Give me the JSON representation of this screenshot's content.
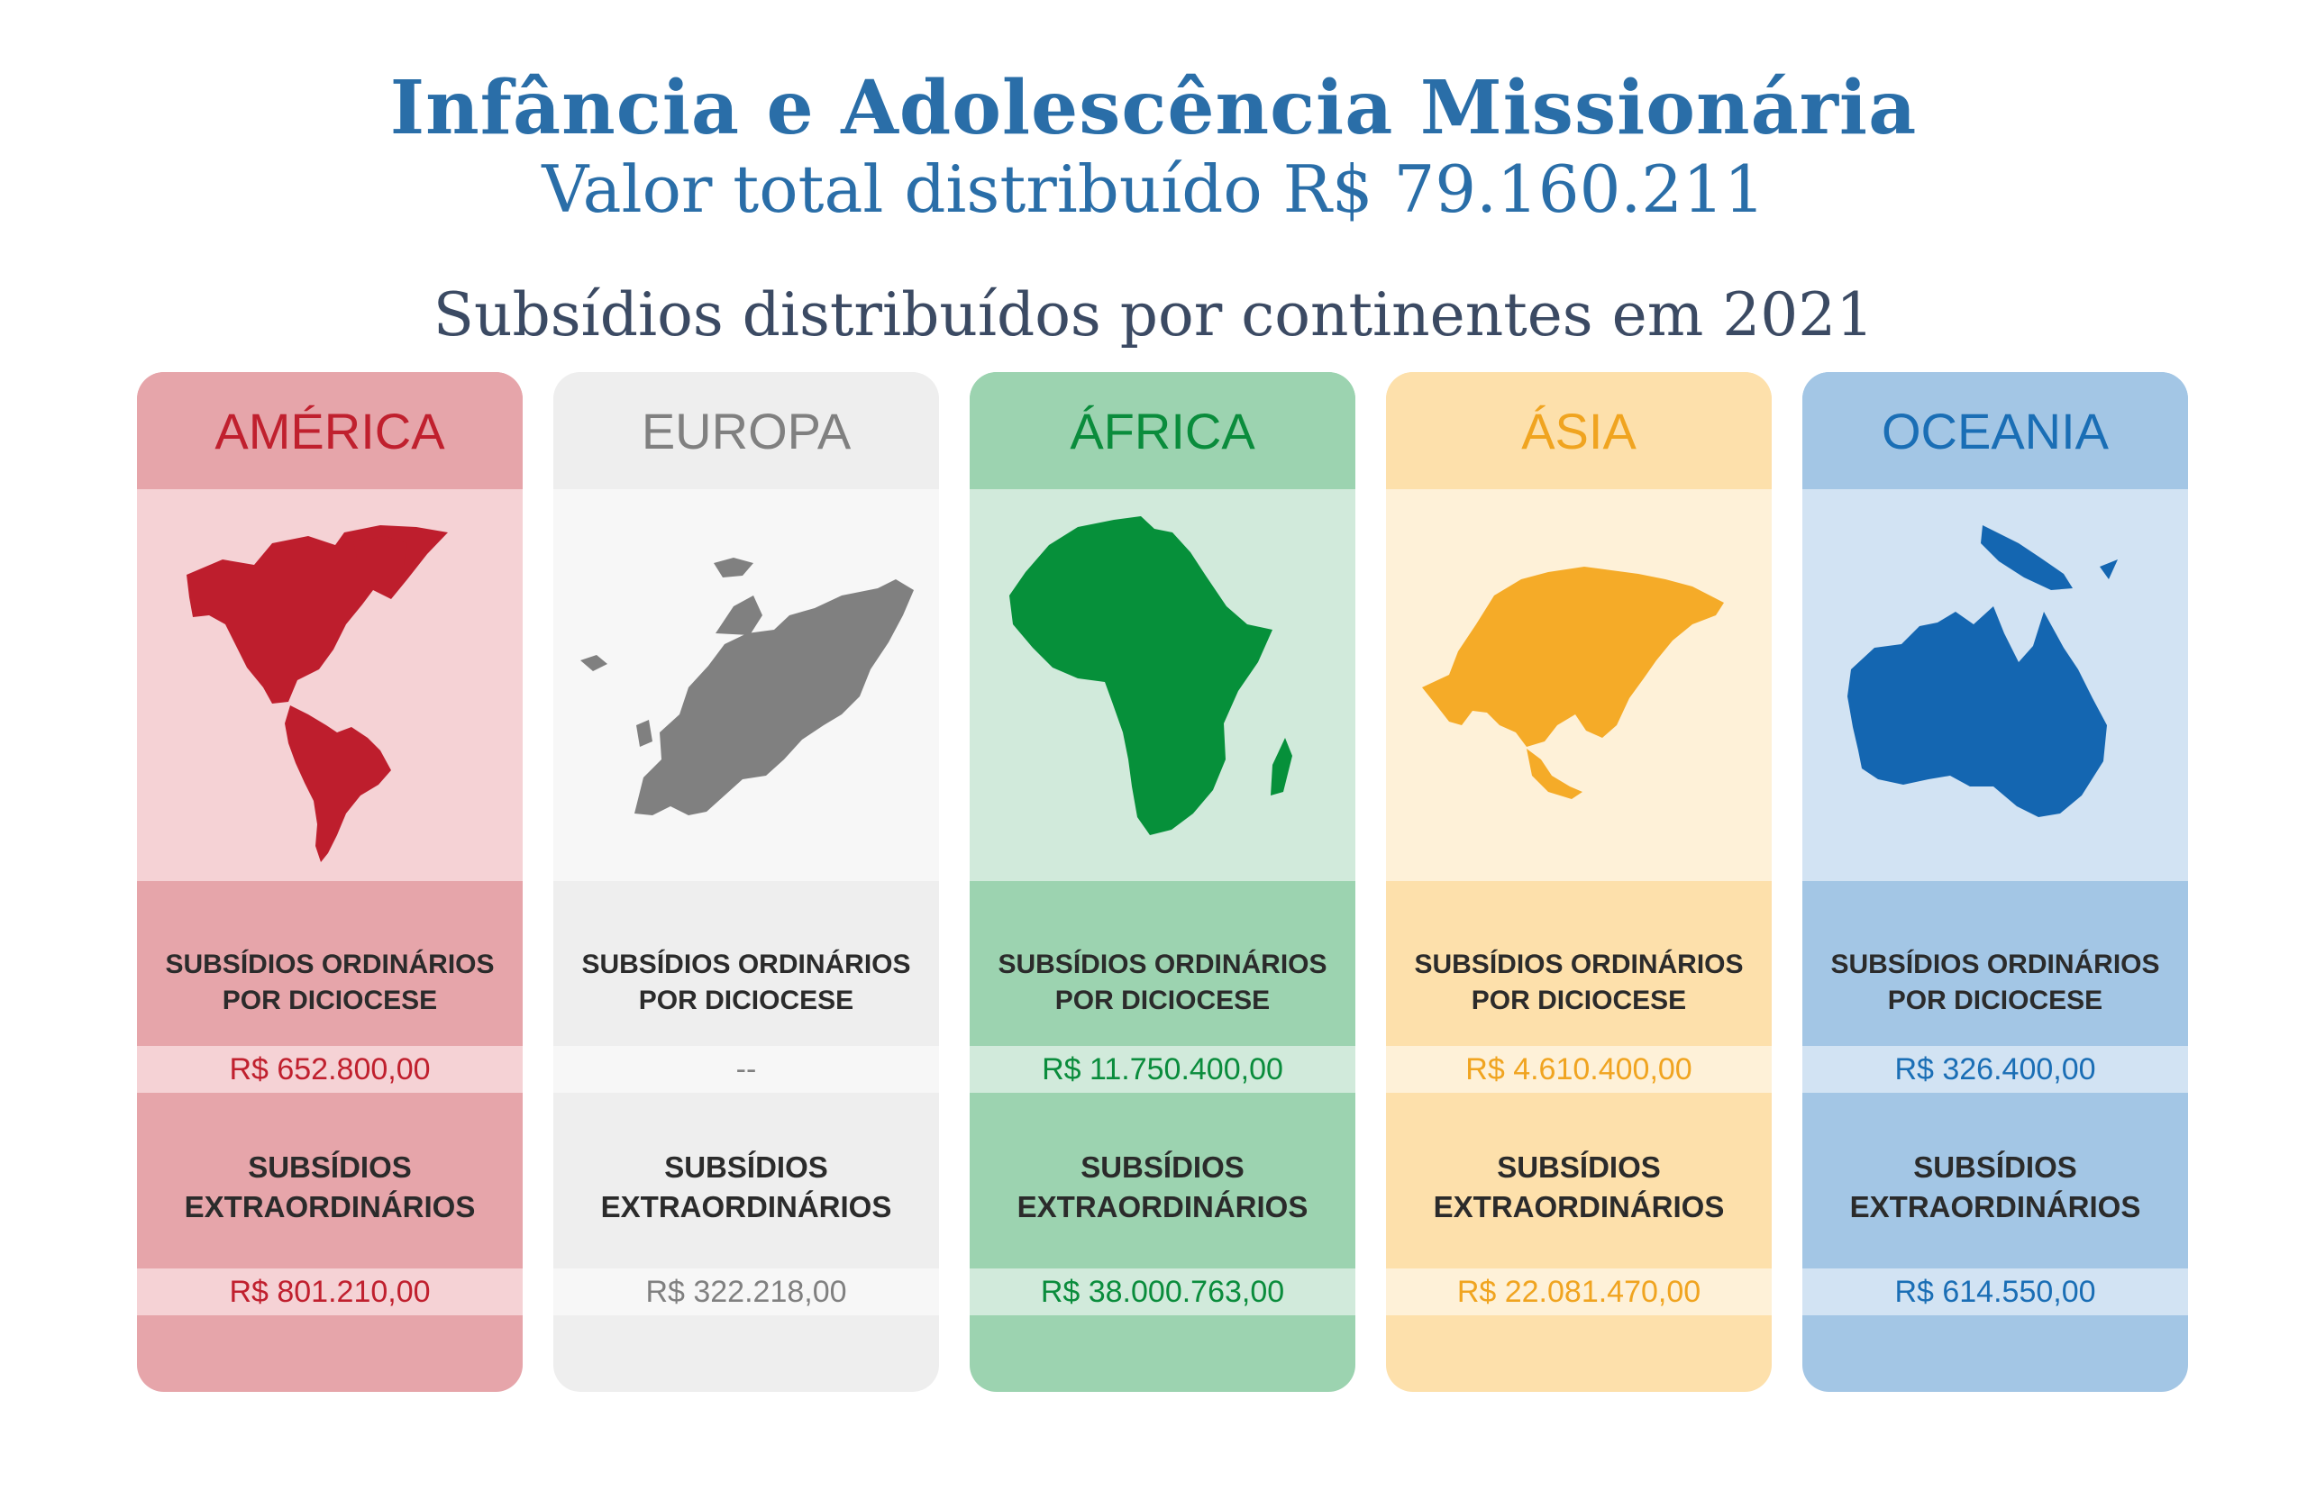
{
  "header": {
    "title": "Infância e Adolescência Missionária",
    "subtitle": "Valor total distribuído R$ 79.160.211",
    "section_title": "Subsídios distribuídos por continentes em 2021"
  },
  "labels": {
    "ordinarios": "SUBSÍDIOS ORDINÁRIOS\nPOR DICIOCESE",
    "extraordinarios": "SUBSÍDIOS\nEXTRAORDINÁRIOS"
  },
  "continents": [
    {
      "name": "AMÉRICA",
      "ordinarios": "R$ 652.800,00",
      "extraordinarios": "R$ 801.210,00",
      "map_icon": "americas-map-icon",
      "colors": {
        "head": "#e6a5aa",
        "map_bg": "#f5d2d5",
        "text": "#c0202e",
        "strip": "#f5d2d5",
        "map": "#be1e2d"
      }
    },
    {
      "name": "EUROPA",
      "ordinarios": "--",
      "extraordinarios": "R$ 322.218,00",
      "map_icon": "europe-map-icon",
      "colors": {
        "head": "#eeeeee",
        "map_bg": "#f7f7f7",
        "text": "#808080",
        "strip": "#f7f7f7",
        "map": "#808080"
      }
    },
    {
      "name": "ÁFRICA",
      "ordinarios": "R$ 11.750.400,00",
      "extraordinarios": "R$ 38.000.763,00",
      "map_icon": "africa-map-icon",
      "colors": {
        "head": "#9cd3b0",
        "map_bg": "#d1eadb",
        "text": "#0a8c3c",
        "strip": "#d1eadb",
        "map": "#06903a"
      }
    },
    {
      "name": "ÁSIA",
      "ordinarios": "R$ 4.610.400,00",
      "extraordinarios": "R$ 22.081.470,00",
      "map_icon": "asia-map-icon",
      "colors": {
        "head": "#fde0ab",
        "map_bg": "#fef1d8",
        "text": "#f0a420",
        "strip": "#fef1d8",
        "map": "#f5ab28"
      }
    },
    {
      "name": "OCEANIA",
      "ordinarios": "R$ 326.400,00",
      "extraordinarios": "R$ 614.550,00",
      "map_icon": "oceania-map-icon",
      "colors": {
        "head": "#a3c6e5",
        "map_bg": "#d2e3f3",
        "text": "#1a6eb5",
        "strip": "#d2e3f3",
        "map": "#1466b1"
      }
    }
  ]
}
